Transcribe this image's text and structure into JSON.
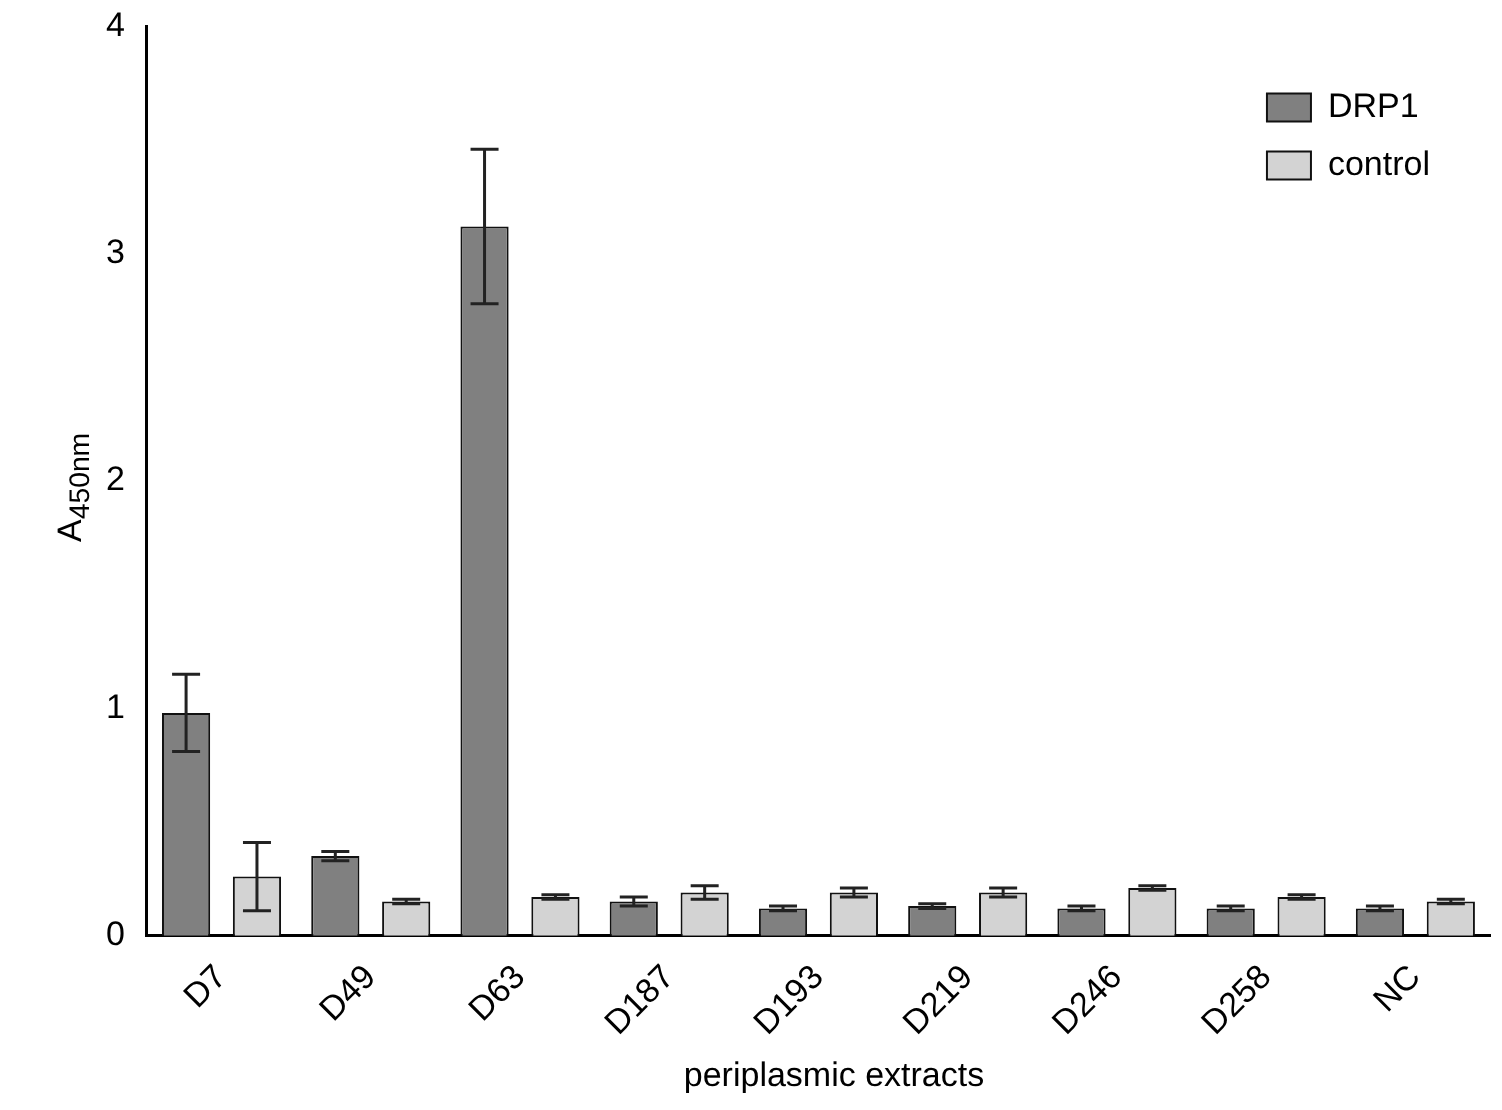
{
  "chart_data": {
    "type": "bar",
    "ylabel": "A$_{450nm}$",
    "xlabel": "periplasmic extracts",
    "categories": [
      "D7",
      "D49",
      "D63",
      "D187",
      "D193",
      "D219",
      "D246",
      "D258",
      "NC"
    ],
    "series": [
      {
        "name": "DRP1",
        "color": "#808080",
        "values": [
          0.98,
          0.35,
          3.12,
          0.15,
          0.12,
          0.13,
          0.12,
          0.12,
          0.12
        ],
        "errors": [
          0.17,
          0.02,
          0.34,
          0.02,
          0.01,
          0.01,
          0.01,
          0.01,
          0.01
        ]
      },
      {
        "name": "control",
        "color": "#d3d3d3",
        "values": [
          0.26,
          0.15,
          0.17,
          0.19,
          0.19,
          0.19,
          0.21,
          0.17,
          0.15
        ],
        "errors": [
          0.15,
          0.01,
          0.01,
          0.03,
          0.02,
          0.02,
          0.01,
          0.01,
          0.01
        ]
      }
    ],
    "ylim": [
      0,
      4
    ],
    "yticks": [
      0,
      1,
      2,
      3,
      4
    ],
    "grid": false,
    "legend": "top right"
  }
}
